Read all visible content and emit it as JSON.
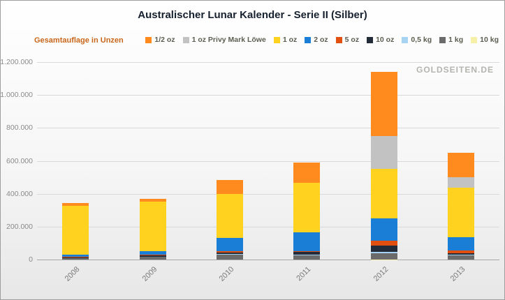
{
  "title": "Australischer Lunar Kalender - Serie II (Silber)",
  "subtitle": "Gesamtauflage in Unzen",
  "watermark": "GOLDSEITEN.DE",
  "chart_data": {
    "type": "bar",
    "stacked": true,
    "title": "Australischer Lunar Kalender - Serie II (Silber)",
    "subtitle": "Gesamtauflage in Unzen",
    "xlabel": "",
    "ylabel": "",
    "ylim": [
      0,
      1200000
    ],
    "ytick_interval": 200000,
    "ytick_labels": [
      "0",
      "200.000",
      "400.000",
      "600.000",
      "800.000",
      "1.000.000",
      "1.200.000"
    ],
    "grid": true,
    "legend_position": "top",
    "categories": [
      "2008",
      "2009",
      "2010",
      "2011",
      "2012",
      "2013"
    ],
    "stack_order_note": "stacked bottom-to-top in reverse legend order (10 kg at bottom, 1/2 oz on top)",
    "series": [
      {
        "name": "1/2 oz",
        "color": "#ff8b1f",
        "values": [
          15000,
          18000,
          85000,
          125000,
          390000,
          150000
        ]
      },
      {
        "name": "1 oz Privy Mark Löwe",
        "color": "#c2c2c2",
        "values": [
          0,
          0,
          0,
          0,
          200000,
          65000
        ]
      },
      {
        "name": "1 oz",
        "color": "#ffd21f",
        "values": [
          300000,
          300000,
          270000,
          300000,
          300000,
          300000
        ]
      },
      {
        "name": "2 oz",
        "color": "#1a7ed6",
        "values": [
          12000,
          22000,
          80000,
          112000,
          137000,
          80000
        ]
      },
      {
        "name": "5 oz",
        "color": "#e2500f",
        "values": [
          3000,
          4000,
          6000,
          8000,
          30000,
          15000
        ]
      },
      {
        "name": "10 oz",
        "color": "#232b38",
        "values": [
          5000,
          6000,
          12000,
          15000,
          40000,
          12000
        ]
      },
      {
        "name": "0,5 kg",
        "color": "#a7d3f2",
        "values": [
          0,
          0,
          2000,
          2000,
          8000,
          3000
        ]
      },
      {
        "name": "1 kg",
        "color": "#6b6b6b",
        "values": [
          8000,
          18000,
          30000,
          28000,
          35000,
          25000
        ]
      },
      {
        "name": "10 kg",
        "color": "#f5efa7",
        "values": [
          0,
          0,
          0,
          0,
          2000,
          0
        ]
      }
    ]
  }
}
